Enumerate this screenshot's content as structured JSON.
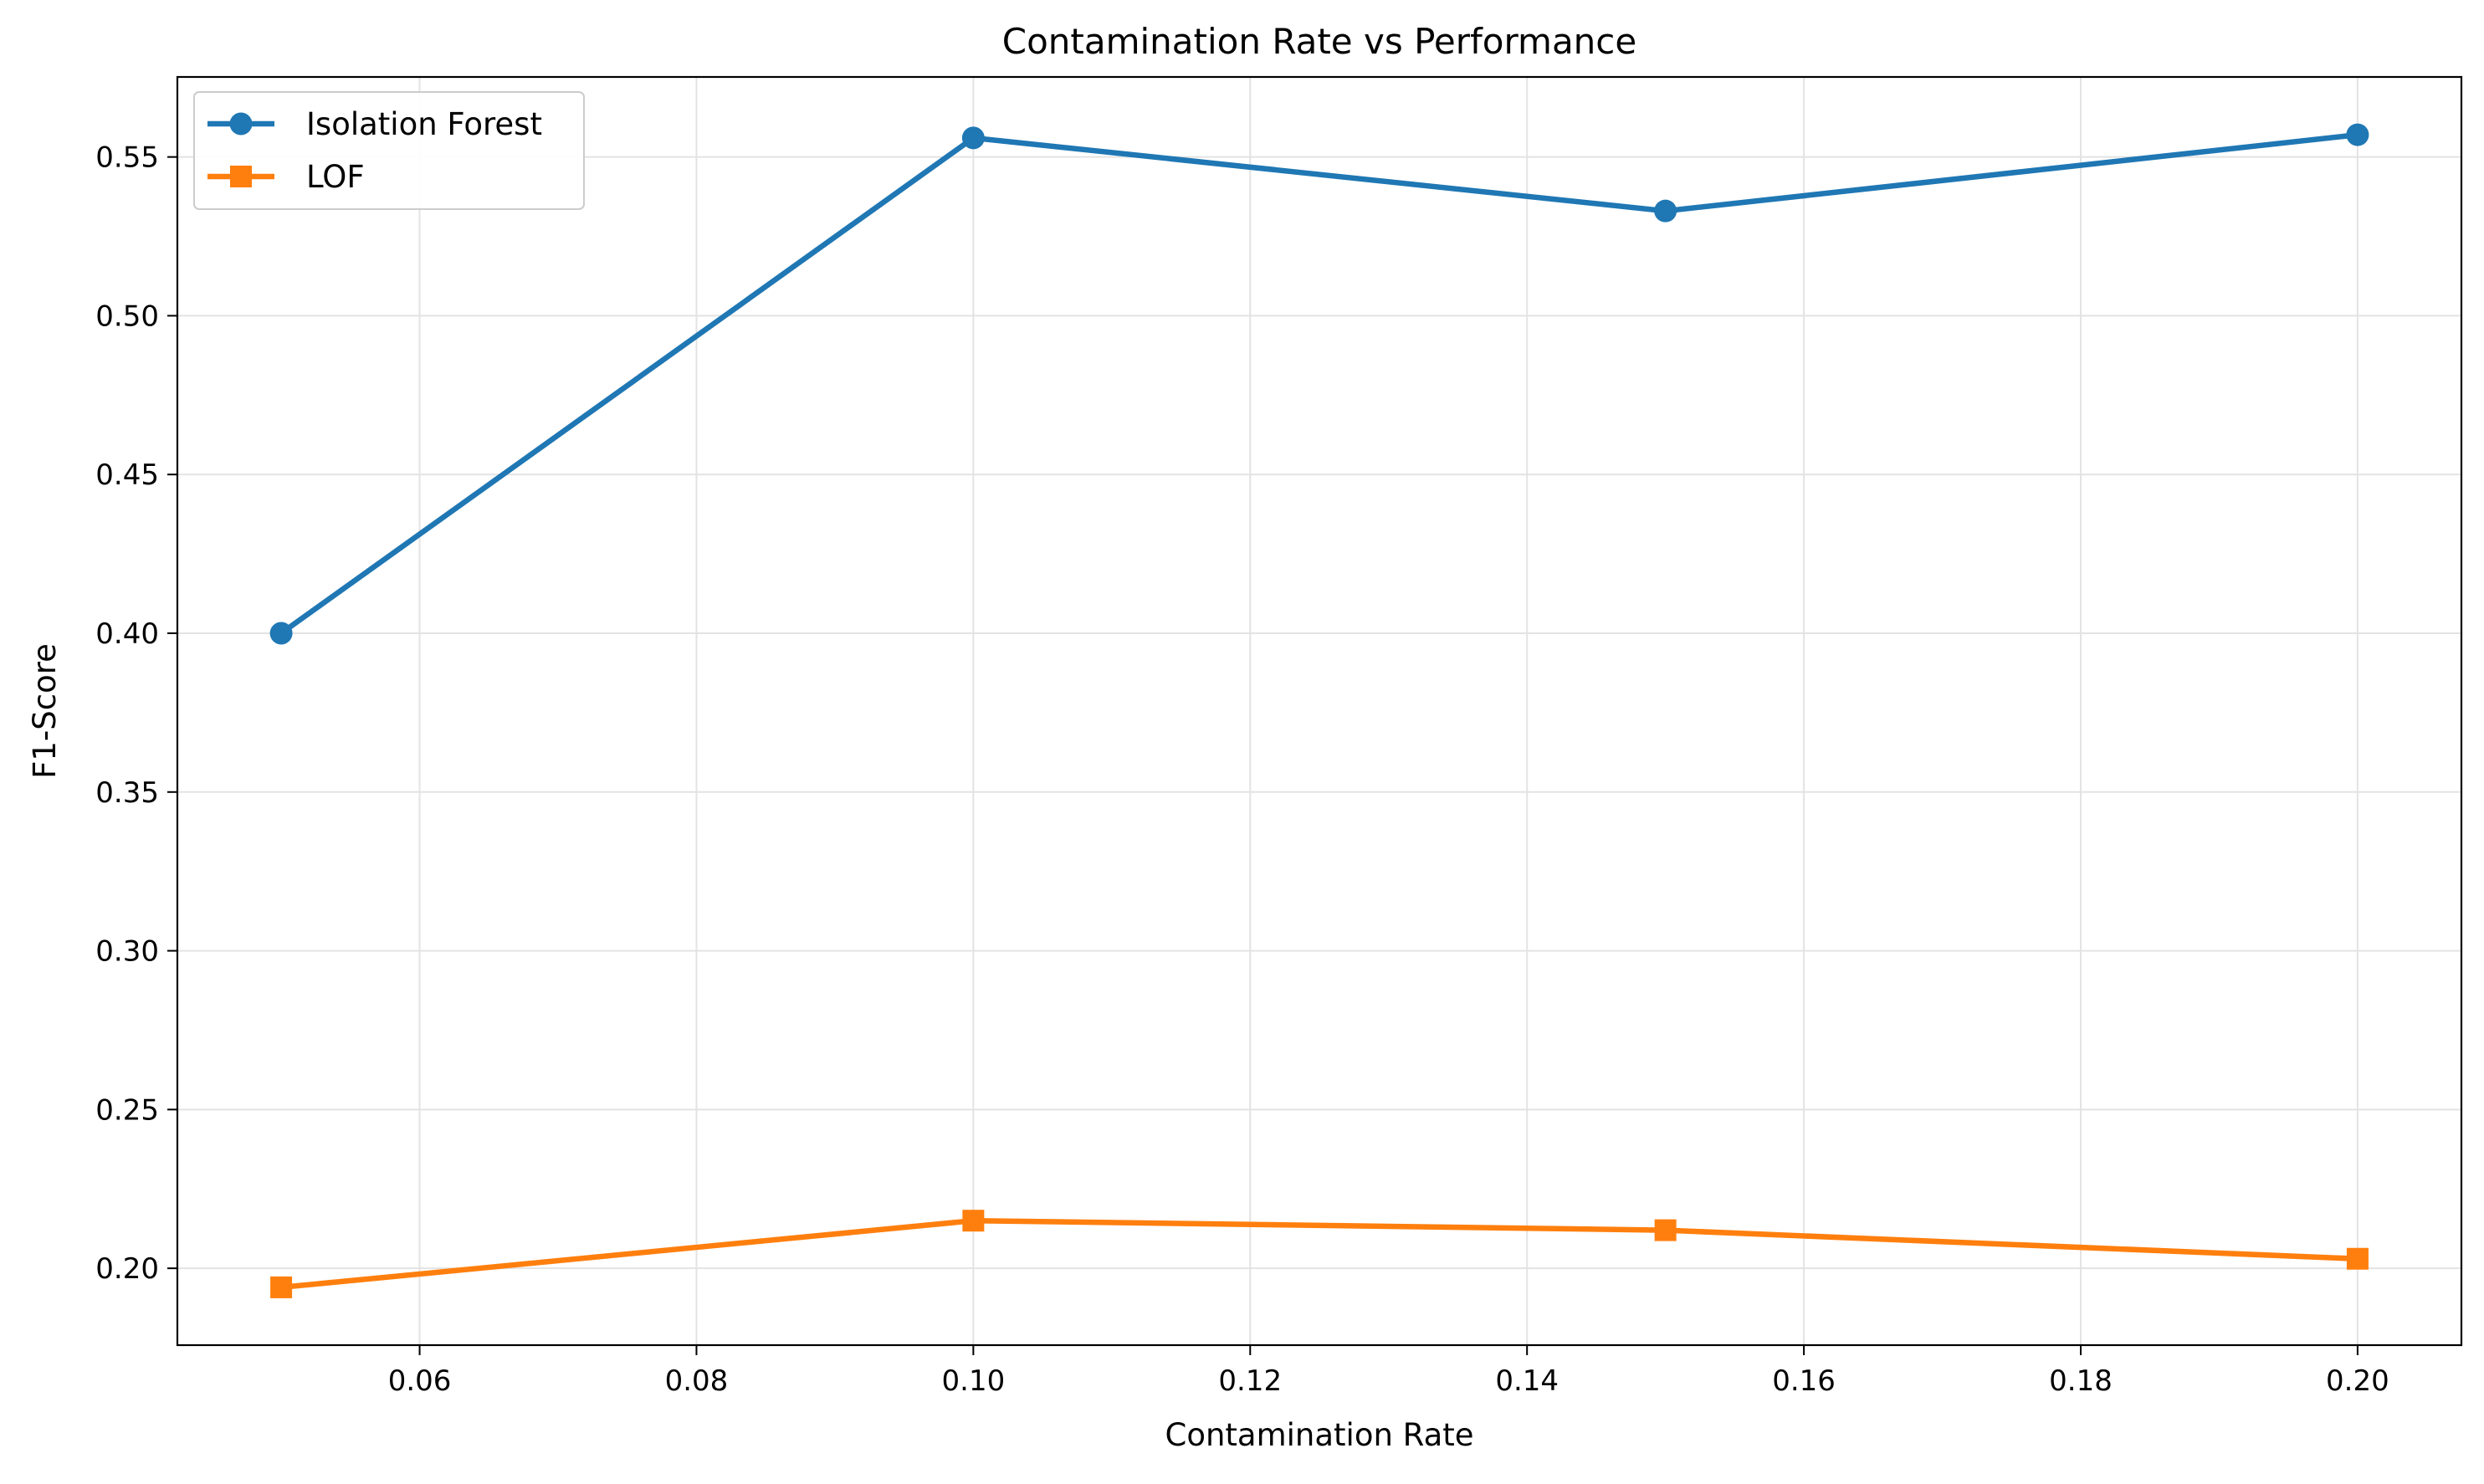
{
  "chart_data": {
    "type": "line",
    "title": "Contamination Rate vs Performance",
    "xlabel": "Contamination Rate",
    "ylabel": "F1-Score",
    "x": [
      0.05,
      0.1,
      0.15,
      0.2
    ],
    "series": [
      {
        "name": "Isolation Forest",
        "values": [
          0.4,
          0.556,
          0.533,
          0.557
        ],
        "color": "#1f77b4",
        "marker": "circle"
      },
      {
        "name": "LOF",
        "values": [
          0.194,
          0.215,
          0.212,
          0.203
        ],
        "color": "#ff7f0e",
        "marker": "square"
      }
    ],
    "xlim": [
      0.0425,
      0.2075
    ],
    "ylim": [
      0.1758,
      0.5752
    ],
    "xticks": [
      0.06,
      0.08,
      0.1,
      0.12,
      0.14,
      0.16,
      0.18,
      0.2
    ],
    "xtick_labels": [
      "0.06",
      "0.08",
      "0.10",
      "0.12",
      "0.14",
      "0.16",
      "0.18",
      "0.20"
    ],
    "yticks": [
      0.2,
      0.25,
      0.3,
      0.35,
      0.4,
      0.45,
      0.5,
      0.55
    ],
    "ytick_labels": [
      "0.20",
      "0.25",
      "0.30",
      "0.35",
      "0.40",
      "0.45",
      "0.50",
      "0.55"
    ],
    "grid": true,
    "legend_position": "top-left"
  }
}
